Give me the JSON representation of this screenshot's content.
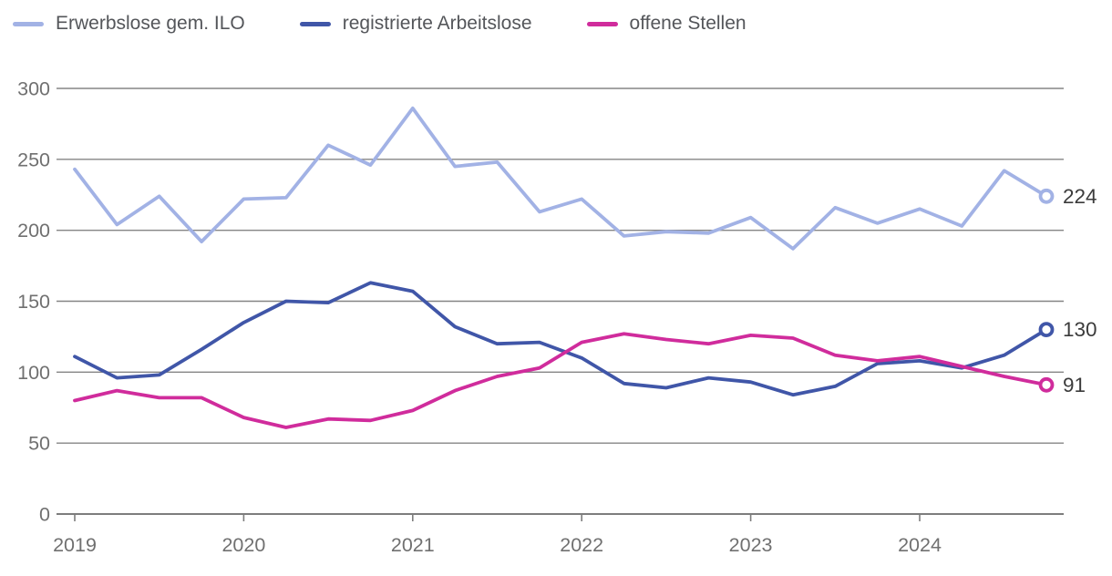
{
  "legend": {
    "items": [
      {
        "id": "ilo",
        "label": "Erwerbslose gem. ILO",
        "color": "#a2b2e5"
      },
      {
        "id": "registered",
        "label": "registrierte Arbeitslose",
        "color": "#4056a8"
      },
      {
        "id": "open",
        "label": "offene Stellen",
        "color": "#d02c9c"
      }
    ]
  },
  "chart_data": {
    "type": "line",
    "title": "",
    "x_frequency": "quarterly",
    "x_start": "2019-Q1",
    "x_tick_labels": [
      "2019",
      "2020",
      "2021",
      "2022",
      "2023",
      "2024"
    ],
    "ylim": [
      0,
      300
    ],
    "yticks": [
      0,
      50,
      100,
      150,
      200,
      250,
      300
    ],
    "grid": true,
    "legend_position": "top-left",
    "series": [
      {
        "id": "ilo",
        "name": "Erwerbslose gem. ILO",
        "color": "#a2b2e5",
        "end_label": "224",
        "values": [
          243,
          204,
          224,
          192,
          222,
          223,
          260,
          246,
          286,
          245,
          248,
          213,
          222,
          196,
          199,
          198,
          209,
          187,
          216,
          205,
          215,
          203,
          242,
          224
        ]
      },
      {
        "id": "registered",
        "name": "registrierte Arbeitslose",
        "color": "#4056a8",
        "end_label": "130",
        "values": [
          111,
          96,
          98,
          116,
          135,
          150,
          149,
          163,
          157,
          132,
          120,
          121,
          110,
          92,
          89,
          96,
          93,
          84,
          90,
          106,
          108,
          103,
          112,
          130
        ]
      },
      {
        "id": "open",
        "name": "offene Stellen",
        "color": "#d02c9c",
        "end_label": "91",
        "values": [
          80,
          87,
          82,
          82,
          68,
          61,
          67,
          66,
          73,
          87,
          97,
          103,
          121,
          127,
          123,
          120,
          126,
          124,
          112,
          108,
          111,
          104,
          97,
          91
        ]
      }
    ],
    "axis_text_color": "#707070",
    "grid_color": "#858585",
    "end_label_color": "#3b3b3b"
  }
}
